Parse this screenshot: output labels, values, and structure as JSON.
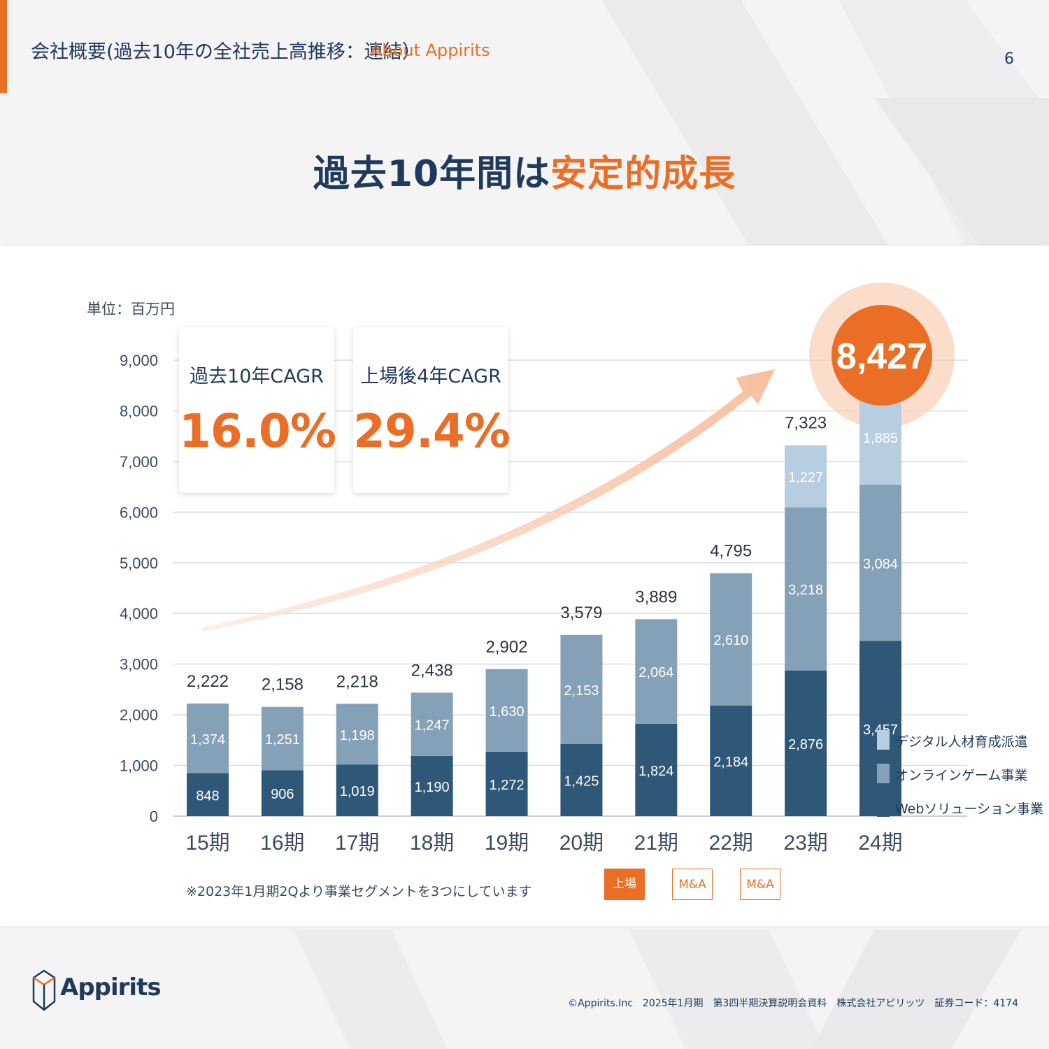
{
  "header": {
    "title": "会社概要(過去10年の全社売上高推移：連結）",
    "subtitle": "About Appirits",
    "page_number": "6"
  },
  "headline": {
    "part1": "過去10年間は",
    "part2": "安定的成長"
  },
  "unit_label": "単位：百万円",
  "kpis": [
    {
      "label": "過去10年CAGR",
      "value": "16.0%"
    },
    {
      "label": "上場後4年CAGR",
      "value": "29.4%"
    }
  ],
  "note": "※2023年1月期2Qより事業セグメントを3つにしています",
  "tags": [
    {
      "label": "上場",
      "period": "21期",
      "style": "filled"
    },
    {
      "label": "M&A",
      "period": "22期",
      "style": "outline"
    },
    {
      "label": "M&A",
      "period": "23期",
      "style": "outline"
    }
  ],
  "colors": {
    "accent": "#ea6e25",
    "web": "#2e5778",
    "game": "#85a1b8",
    "digital": "#b7cde0",
    "text": "#1f3a5a"
  },
  "logo_text": "Appirits",
  "footer": "©Appirits.Inc　2025年1月期　第3四半期決算説明会資料　株式会社アピリッツ　証券コード：4174",
  "chart_data": {
    "type": "bar",
    "stacked": true,
    "categories": [
      "15期",
      "16期",
      "17期",
      "18期",
      "19期",
      "20期",
      "21期",
      "22期",
      "23期",
      "24期"
    ],
    "series": [
      {
        "name": "Webソリューション事業",
        "color": "#2e5778",
        "values": [
          848,
          906,
          1019,
          1190,
          1272,
          1425,
          1824,
          2184,
          2876,
          3457
        ]
      },
      {
        "name": "オンラインゲーム事業",
        "color": "#85a1b8",
        "values": [
          1374,
          1251,
          1198,
          1247,
          1630,
          2153,
          2064,
          2610,
          3218,
          3084
        ]
      },
      {
        "name": "デジタル人材育成派遣",
        "color": "#b7cde0",
        "values": [
          null,
          null,
          null,
          null,
          null,
          null,
          null,
          null,
          1227,
          1885
        ]
      }
    ],
    "totals": [
      "2,222",
      "2,158",
      "2,218",
      "2,438",
      "2,902",
      "3,579",
      "3,889",
      "4,795",
      "7,323",
      "8,427"
    ],
    "yticks": [
      "0",
      "1,000",
      "2,000",
      "3,000",
      "4,000",
      "5,000",
      "6,000",
      "7,000",
      "8,000",
      "9,000"
    ],
    "ylim": [
      0,
      9000
    ],
    "grid": true,
    "legend_position": "bottom-right",
    "highlight_last_total": true
  }
}
